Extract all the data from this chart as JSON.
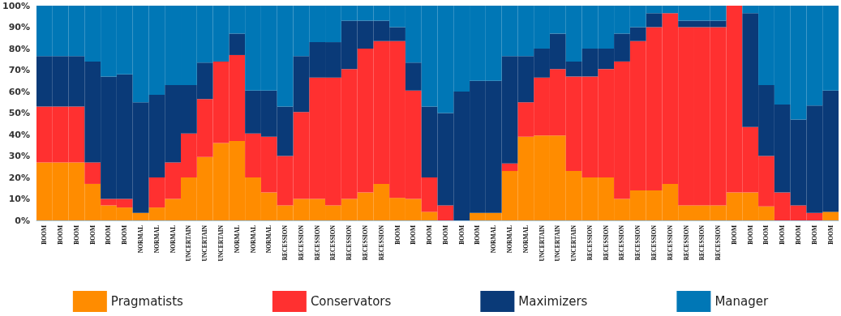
{
  "chart_data": {
    "type": "bar",
    "stacked": true,
    "legend": "bottom",
    "grid": false,
    "categories": [
      "BOOM",
      "BOOM",
      "BOOM",
      "BOOM",
      "BOOM",
      "BOOM",
      "NORMAL",
      "NORMAL",
      "NORMAL",
      "UNCERTAIN",
      "UNCERTAIN",
      "UNCERTAIN",
      "NORMAL",
      "NORMAL",
      "NORMAL",
      "RECESSION",
      "RECESSION",
      "RECESSION",
      "RECESSION",
      "RECESSION",
      "RECESSION",
      "RECESSION",
      "BOOM",
      "BOOM",
      "BOOM",
      "BOOM",
      "BOOM",
      "BOOM",
      "NORMAL",
      "NORMAL",
      "NORMAL",
      "UNCERTAIN",
      "UNCERTAIN",
      "UNCERTAIN",
      "RECESSION",
      "RECESSION",
      "RECESSION",
      "RECESSION",
      "RECESSION",
      "RECESSION",
      "RECESSION",
      "RECESSION",
      "RECESSION",
      "BOOM",
      "BOOM",
      "BOOM",
      "BOOM",
      "BOOM",
      "BOOM",
      "BOOM"
    ],
    "ylim": [
      0,
      100
    ],
    "yticks": [
      {
        "value": 0,
        "label": "0%"
      },
      {
        "value": 10,
        "label": "10%"
      },
      {
        "value": 20,
        "label": "20%"
      },
      {
        "value": 30,
        "label": "30%"
      },
      {
        "value": 40,
        "label": "40%"
      },
      {
        "value": 50,
        "label": "50%"
      },
      {
        "value": 60,
        "label": "60%"
      },
      {
        "value": 70,
        "label": "70%"
      },
      {
        "value": 80,
        "label": "80%"
      },
      {
        "value": 90,
        "label": "90%"
      },
      {
        "value": 100,
        "label": "100%"
      }
    ],
    "series": [
      {
        "name": "Pragmatists",
        "color": "#ff8c00",
        "values": [
          27,
          27,
          27,
          17,
          7,
          6,
          3.5,
          6,
          10,
          20,
          29.5,
          36,
          37,
          20,
          13,
          7,
          10,
          10,
          7,
          10,
          13,
          17,
          10.5,
          10,
          4,
          0,
          0,
          3.5,
          3.5,
          23,
          39,
          39.5,
          39.5,
          23,
          20,
          20,
          10,
          14,
          14,
          17,
          7,
          7,
          7,
          13,
          13,
          6.5,
          0,
          0,
          0,
          4
        ]
      },
      {
        "name": "Conservators",
        "color": "#ff3030",
        "values": [
          26,
          26,
          26,
          10,
          3,
          4,
          0,
          14,
          17,
          20.5,
          27,
          38,
          40,
          20.5,
          26,
          23,
          40.5,
          56.5,
          59.5,
          60.5,
          67,
          66.5,
          73,
          50.5,
          16,
          7,
          0,
          0,
          0,
          3.5,
          16,
          27,
          31,
          44,
          47,
          50.5,
          64,
          69.5,
          76,
          79.5,
          83,
          83,
          83,
          87,
          30.5,
          23.5,
          13,
          7,
          3.5,
          0
        ]
      },
      {
        "name": "Maximizers",
        "color": "#0a3a78",
        "values": [
          23.5,
          23.5,
          23.5,
          47,
          57,
          58,
          51.5,
          38.5,
          36,
          22.5,
          17,
          0,
          10,
          20,
          21.5,
          23,
          26,
          16.5,
          16.5,
          22.5,
          13,
          9.5,
          6.5,
          13,
          33,
          43,
          60,
          61.5,
          61.5,
          50,
          21.5,
          13.5,
          16.5,
          7,
          13,
          9.5,
          13,
          6.5,
          6.5,
          0,
          3,
          3,
          3,
          0,
          53,
          33,
          41,
          40,
          50,
          56.5
        ]
      },
      {
        "name": "Manager",
        "color": "#0077b6",
        "values": [
          23.5,
          23.5,
          23.5,
          26,
          33,
          32,
          45,
          41.5,
          37,
          37,
          26.5,
          26,
          13,
          39.5,
          39.5,
          47,
          23.5,
          17,
          17,
          7,
          7,
          7,
          10,
          26.5,
          47,
          50,
          40,
          35,
          35,
          23.5,
          23.5,
          20,
          13,
          26,
          20,
          20,
          13,
          10,
          3.5,
          3.5,
          7,
          7,
          7,
          0,
          3.5,
          37,
          46,
          53,
          46.5,
          39.5
        ]
      }
    ]
  }
}
